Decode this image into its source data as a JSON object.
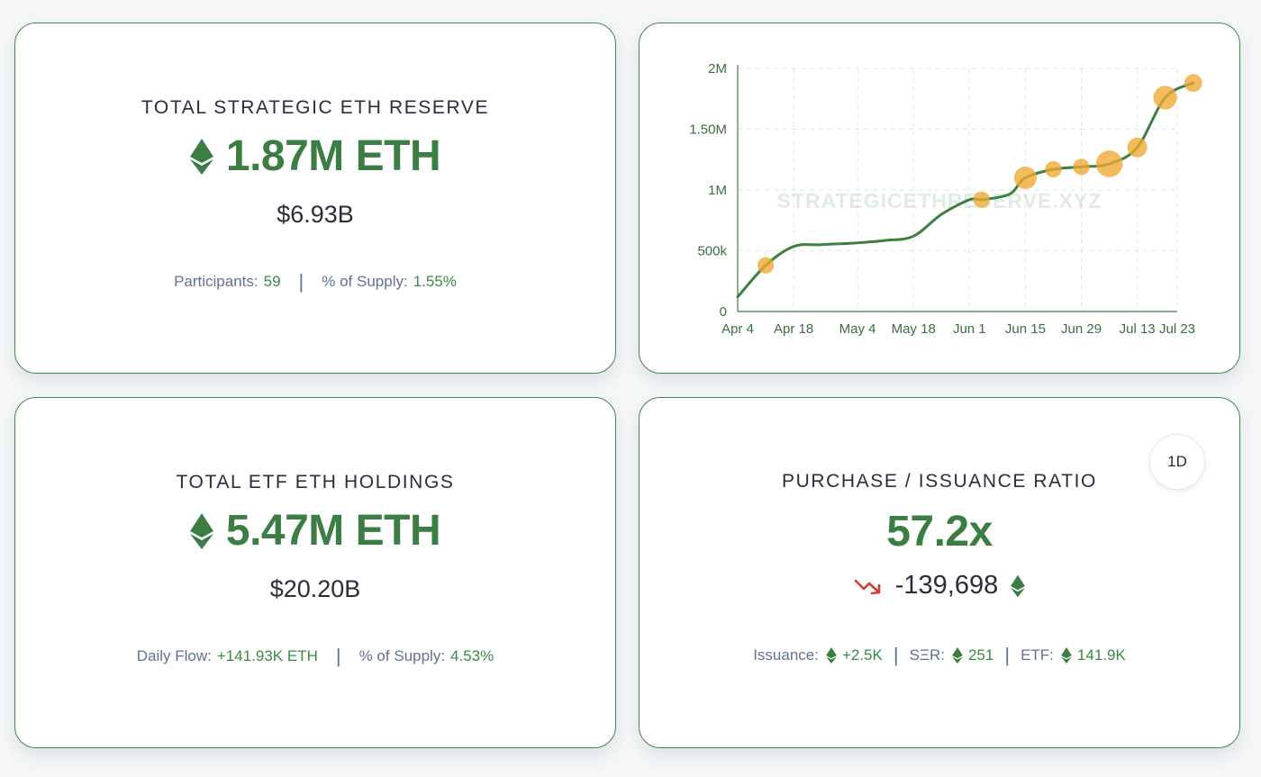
{
  "reserve_card": {
    "title": "TOTAL STRATEGIC ETH RESERVE",
    "value": "1.87M ETH",
    "usd": "$6.93B",
    "participants_label": "Participants:",
    "participants_value": "59",
    "supply_label": "% of Supply:",
    "supply_value": "1.55%"
  },
  "etf_card": {
    "title": "TOTAL ETF ETH HOLDINGS",
    "value": "5.47M ETH",
    "usd": "$20.20B",
    "flow_label": "Daily Flow:",
    "flow_value": "+141.93K ETH",
    "supply_label": "% of Supply:",
    "supply_value": "4.53%"
  },
  "ratio_card": {
    "title": "PURCHASE / ISSUANCE RATIO",
    "value": "57.2x",
    "delta": "-139,698",
    "period_button": "1D",
    "issuance_label": "Issuance:",
    "issuance_value": "+2.5K",
    "ser_label": "SΞR:",
    "ser_value": "251",
    "etf_label": "ETF:",
    "etf_value": "141.9K"
  },
  "icons": {
    "eth": "ethereum-icon",
    "trend": "trend-down-icon"
  },
  "colors": {
    "accent_green": "#3b7d43",
    "line_green": "#3e7f42",
    "bubble_orange": "#f0a830",
    "meta_blue": "#5d7294",
    "trend_red": "#d23b32"
  },
  "chart_data": {
    "type": "line",
    "watermark": "STRATEGICETHRESERVE.XYZ",
    "x_tick_labels": [
      "Apr 4",
      "Apr 18",
      "May 4",
      "May 18",
      "Jun 1",
      "Jun 15",
      "Jun 29",
      "Jul 13",
      "Jul 23"
    ],
    "y_tick_labels": [
      "0",
      "500k",
      "1M",
      "1.50M",
      "2M"
    ],
    "x_range": [
      "2025-04-04",
      "2025-07-23"
    ],
    "ylim": [
      0,
      2000000
    ],
    "grid": true,
    "series": [
      {
        "points": [
          {
            "x": "2025-04-04",
            "y": 120000
          },
          {
            "x": "2025-04-11",
            "y": 380000
          },
          {
            "x": "2025-04-18",
            "y": 535000
          },
          {
            "x": "2025-04-25",
            "y": 550000
          },
          {
            "x": "2025-05-04",
            "y": 565000
          },
          {
            "x": "2025-05-11",
            "y": 585000
          },
          {
            "x": "2025-05-18",
            "y": 620000
          },
          {
            "x": "2025-05-25",
            "y": 800000
          },
          {
            "x": "2025-06-01",
            "y": 920000
          },
          {
            "x": "2025-06-04",
            "y": 920000
          },
          {
            "x": "2025-06-11",
            "y": 965000
          },
          {
            "x": "2025-06-15",
            "y": 1100000
          },
          {
            "x": "2025-06-22",
            "y": 1170000
          },
          {
            "x": "2025-06-29",
            "y": 1190000
          },
          {
            "x": "2025-07-06",
            "y": 1215000
          },
          {
            "x": "2025-07-13",
            "y": 1350000
          },
          {
            "x": "2025-07-20",
            "y": 1760000
          },
          {
            "x": "2025-07-27",
            "y": 1880000
          }
        ]
      }
    ],
    "events": [
      {
        "x": "2025-04-11",
        "y": 380000,
        "weight": 1
      },
      {
        "x": "2025-06-04",
        "y": 920000,
        "weight": 1
      },
      {
        "x": "2025-06-15",
        "y": 1100000,
        "weight": 3
      },
      {
        "x": "2025-06-22",
        "y": 1170000,
        "weight": 1
      },
      {
        "x": "2025-06-29",
        "y": 1190000,
        "weight": 1
      },
      {
        "x": "2025-07-06",
        "y": 1215000,
        "weight": 5
      },
      {
        "x": "2025-07-13",
        "y": 1350000,
        "weight": 2
      },
      {
        "x": "2025-07-20",
        "y": 1760000,
        "weight": 3.5
      },
      {
        "x": "2025-07-27",
        "y": 1880000,
        "weight": 1.4
      }
    ]
  }
}
